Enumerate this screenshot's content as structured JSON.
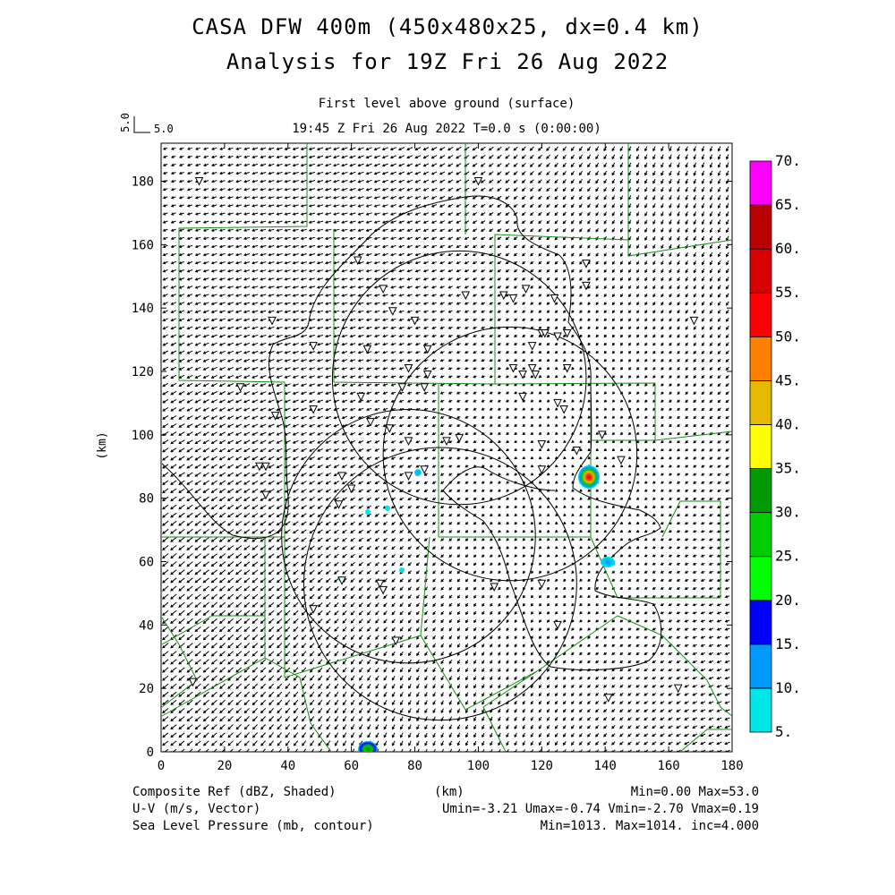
{
  "title_line1": "CASA DFW 400m (450x480x25, dx=0.4 km)",
  "title_line2": "Analysis for 19Z Fri 26 Aug 2022",
  "subtitle_level": "First level above ground (surface)",
  "subtitle_time": "19:45 Z Fri 26 Aug 2022    T=0.0 s (0:00:00)",
  "vector_key": {
    "value_label": "5.0",
    "rotated_label": "5.0"
  },
  "footer": {
    "field1": "Composite Ref (dBZ, Shaded)",
    "field2": "U-V (m/s, Vector)",
    "field3": "Sea Level Pressure (mb, contour)",
    "xunit": "(km)",
    "stats1": "Min=0.00 Max=53.0",
    "stats2": "Umin=-3.21 Umax=-0.74 Vmin=-2.70 Vmax=0.19",
    "stats3": "Min=1013. Max=1014. inc=4.000"
  },
  "colors": {
    "county_lines": "#1a8a1a",
    "contours": "#000000",
    "colorbar": [
      "#00e6e6",
      "#0099ff",
      "#0000ff",
      "#00ff00",
      "#00cc00",
      "#009900",
      "#ffff00",
      "#e6b800",
      "#ff8000",
      "#ff0000",
      "#d90000",
      "#b80000",
      "#ff00ff"
    ]
  },
  "chart_data": {
    "type": "heatmap",
    "xlabel": "",
    "ylabel": "(km)",
    "xlim": [
      0,
      180
    ],
    "ylim": [
      0,
      192
    ],
    "xticks": [
      0,
      20,
      40,
      60,
      80,
      100,
      120,
      140,
      160,
      180
    ],
    "yticks": [
      0,
      20,
      40,
      60,
      80,
      100,
      120,
      140,
      160,
      180
    ],
    "colorbar_levels": [
      "5.",
      "10.",
      "15.",
      "20.",
      "25.",
      "30.",
      "35.",
      "40.",
      "45.",
      "50.",
      "55.",
      "60.",
      "65.",
      "70."
    ],
    "radar_rings": [
      {
        "cx": 78,
        "cy": 68,
        "r": 40
      },
      {
        "cx": 94,
        "cy": 118,
        "r": 40
      },
      {
        "cx": 110,
        "cy": 94,
        "r": 40
      },
      {
        "cx": 88,
        "cy": 53,
        "r": 43
      }
    ],
    "reflectivity_cells": [
      {
        "x": 134,
        "y": 87,
        "dbz_max": 53
      },
      {
        "x": 141,
        "y": 60,
        "dbz_max": 12
      },
      {
        "x": 65,
        "y": 1,
        "dbz_max": 33
      },
      {
        "x": 81,
        "y": 88,
        "dbz_max": 12
      },
      {
        "x": 65,
        "y": 76,
        "dbz_max": 8
      },
      {
        "x": 71,
        "y": 77,
        "dbz_max": 8
      },
      {
        "x": 76,
        "y": 57,
        "dbz_max": 8
      },
      {
        "x": 57,
        "y": 55,
        "dbz_max": 8
      }
    ],
    "stations": [
      [
        12,
        180
      ],
      [
        100,
        180
      ],
      [
        62,
        155
      ],
      [
        134,
        154
      ],
      [
        70,
        146
      ],
      [
        111,
        143
      ],
      [
        115,
        146
      ],
      [
        124,
        143
      ],
      [
        35,
        136
      ],
      [
        73,
        139
      ],
      [
        80,
        136
      ],
      [
        96,
        144
      ],
      [
        108,
        144
      ],
      [
        134,
        147
      ],
      [
        48,
        128
      ],
      [
        65,
        127
      ],
      [
        84,
        127
      ],
      [
        117,
        128
      ],
      [
        120,
        132
      ],
      [
        121,
        132
      ],
      [
        125,
        131
      ],
      [
        128,
        132
      ],
      [
        78,
        121
      ],
      [
        84,
        119
      ],
      [
        111,
        121
      ],
      [
        114,
        119
      ],
      [
        118,
        119
      ],
      [
        117,
        121
      ],
      [
        128,
        121
      ],
      [
        25,
        115
      ],
      [
        63,
        112
      ],
      [
        76,
        115
      ],
      [
        83,
        115
      ],
      [
        114,
        112
      ],
      [
        125,
        110
      ],
      [
        127,
        108
      ],
      [
        36,
        106
      ],
      [
        48,
        108
      ],
      [
        66,
        104
      ],
      [
        72,
        102
      ],
      [
        78,
        98
      ],
      [
        90,
        98
      ],
      [
        94,
        99
      ],
      [
        120,
        97
      ],
      [
        131,
        95
      ],
      [
        139,
        100
      ],
      [
        31,
        90
      ],
      [
        33,
        90
      ],
      [
        57,
        87
      ],
      [
        60,
        83
      ],
      [
        56,
        78
      ],
      [
        33,
        81
      ],
      [
        78,
        87
      ],
      [
        83,
        89
      ],
      [
        120,
        89
      ],
      [
        145,
        92
      ],
      [
        48,
        45
      ],
      [
        57,
        54
      ],
      [
        69,
        53
      ],
      [
        70,
        51
      ],
      [
        105,
        52
      ],
      [
        120,
        53
      ],
      [
        74,
        35
      ],
      [
        125,
        40
      ],
      [
        141,
        17
      ],
      [
        163,
        20
      ],
      [
        10,
        22
      ],
      [
        168,
        136
      ]
    ]
  }
}
